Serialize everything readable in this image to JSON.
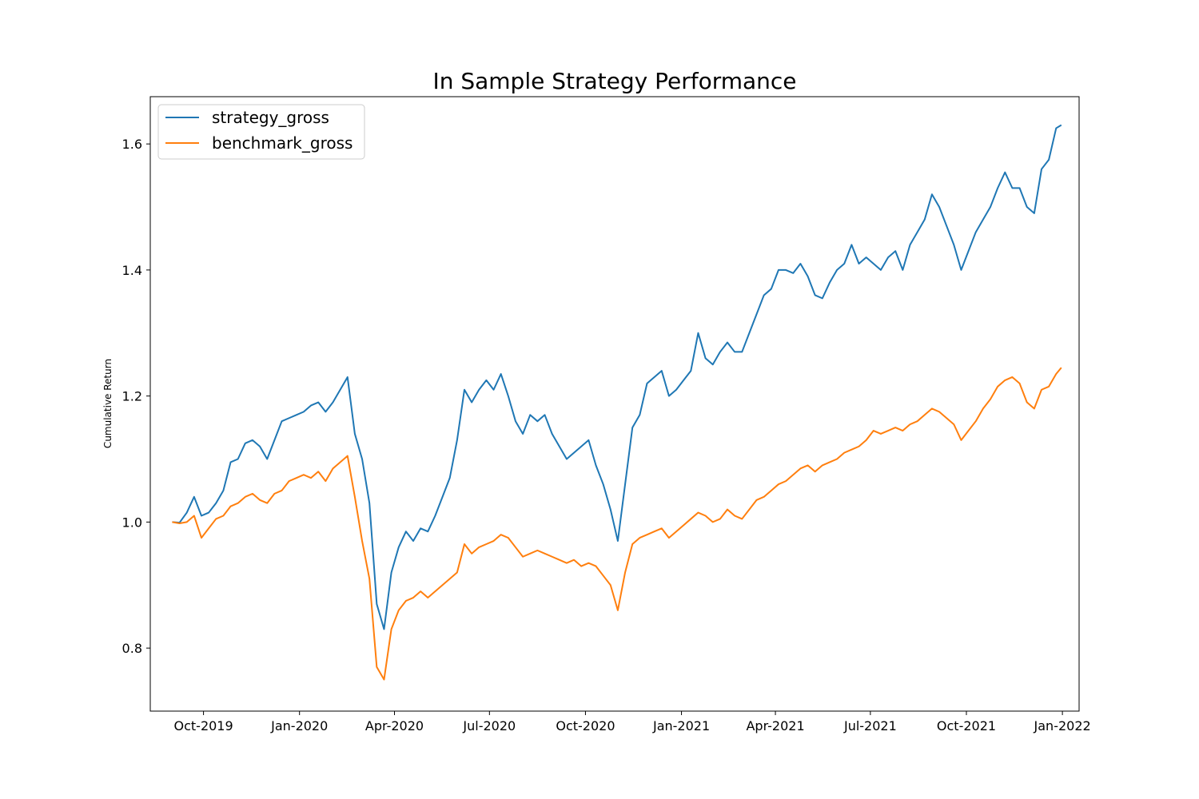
{
  "chart_data": {
    "type": "line",
    "title": "In Sample Strategy Performance",
    "xlabel": "",
    "ylabel": "Cumulative Return",
    "xlim": [
      "2019-08-11",
      "2022-01-17"
    ],
    "ylim": [
      0.7,
      1.675
    ],
    "x_ticks": [
      {
        "date": "2019-10-01",
        "label": "Oct-2019"
      },
      {
        "date": "2020-01-01",
        "label": "Jan-2020"
      },
      {
        "date": "2020-04-01",
        "label": "Apr-2020"
      },
      {
        "date": "2020-07-01",
        "label": "Jul-2020"
      },
      {
        "date": "2020-10-01",
        "label": "Oct-2020"
      },
      {
        "date": "2021-01-01",
        "label": "Jan-2021"
      },
      {
        "date": "2021-04-01",
        "label": "Apr-2021"
      },
      {
        "date": "2021-07-01",
        "label": "Jul-2021"
      },
      {
        "date": "2021-10-01",
        "label": "Oct-2021"
      },
      {
        "date": "2022-01-01",
        "label": "Jan-2022"
      }
    ],
    "y_ticks": [
      {
        "value": 0.8,
        "label": "0.8"
      },
      {
        "value": 1.0,
        "label": "1.0"
      },
      {
        "value": 1.2,
        "label": "1.2"
      },
      {
        "value": 1.4,
        "label": "1.4"
      },
      {
        "value": 1.6,
        "label": "1.6"
      }
    ],
    "grid": false,
    "legend_position": "top-left",
    "series": [
      {
        "name": "strategy_gross",
        "color": "#1f77b4",
        "points": [
          [
            "2019-09-01",
            1.0
          ],
          [
            "2019-09-08",
            0.999
          ],
          [
            "2019-09-15",
            1.015
          ],
          [
            "2019-09-22",
            1.04
          ],
          [
            "2019-09-29",
            1.01
          ],
          [
            "2019-10-06",
            1.015
          ],
          [
            "2019-10-13",
            1.03
          ],
          [
            "2019-10-20",
            1.05
          ],
          [
            "2019-10-27",
            1.095
          ],
          [
            "2019-11-03",
            1.1
          ],
          [
            "2019-11-10",
            1.125
          ],
          [
            "2019-11-17",
            1.13
          ],
          [
            "2019-11-24",
            1.12
          ],
          [
            "2019-12-01",
            1.1
          ],
          [
            "2019-12-08",
            1.13
          ],
          [
            "2019-12-15",
            1.16
          ],
          [
            "2019-12-22",
            1.165
          ],
          [
            "2019-12-29",
            1.17
          ],
          [
            "2020-01-05",
            1.175
          ],
          [
            "2020-01-12",
            1.185
          ],
          [
            "2020-01-19",
            1.19
          ],
          [
            "2020-01-26",
            1.175
          ],
          [
            "2020-02-02",
            1.19
          ],
          [
            "2020-02-09",
            1.21
          ],
          [
            "2020-02-16",
            1.23
          ],
          [
            "2020-02-23",
            1.14
          ],
          [
            "2020-03-01",
            1.1
          ],
          [
            "2020-03-08",
            1.03
          ],
          [
            "2020-03-15",
            0.87
          ],
          [
            "2020-03-22",
            0.83
          ],
          [
            "2020-03-29",
            0.92
          ],
          [
            "2020-04-05",
            0.96
          ],
          [
            "2020-04-12",
            0.985
          ],
          [
            "2020-04-19",
            0.97
          ],
          [
            "2020-04-26",
            0.99
          ],
          [
            "2020-05-03",
            0.985
          ],
          [
            "2020-05-10",
            1.01
          ],
          [
            "2020-05-17",
            1.04
          ],
          [
            "2020-05-24",
            1.07
          ],
          [
            "2020-05-31",
            1.13
          ],
          [
            "2020-06-07",
            1.21
          ],
          [
            "2020-06-14",
            1.19
          ],
          [
            "2020-06-21",
            1.21
          ],
          [
            "2020-06-28",
            1.225
          ],
          [
            "2020-07-05",
            1.21
          ],
          [
            "2020-07-12",
            1.235
          ],
          [
            "2020-07-19",
            1.2
          ],
          [
            "2020-07-26",
            1.16
          ],
          [
            "2020-08-02",
            1.14
          ],
          [
            "2020-08-09",
            1.17
          ],
          [
            "2020-08-16",
            1.16
          ],
          [
            "2020-08-23",
            1.17
          ],
          [
            "2020-08-30",
            1.14
          ],
          [
            "2020-09-06",
            1.12
          ],
          [
            "2020-09-13",
            1.1
          ],
          [
            "2020-09-20",
            1.11
          ],
          [
            "2020-09-27",
            1.12
          ],
          [
            "2020-10-04",
            1.13
          ],
          [
            "2020-10-11",
            1.09
          ],
          [
            "2020-10-18",
            1.06
          ],
          [
            "2020-10-25",
            1.02
          ],
          [
            "2020-11-01",
            0.97
          ],
          [
            "2020-11-08",
            1.06
          ],
          [
            "2020-11-15",
            1.15
          ],
          [
            "2020-11-22",
            1.17
          ],
          [
            "2020-11-29",
            1.22
          ],
          [
            "2020-12-06",
            1.23
          ],
          [
            "2020-12-13",
            1.24
          ],
          [
            "2020-12-20",
            1.2
          ],
          [
            "2020-12-27",
            1.21
          ],
          [
            "2021-01-03",
            1.225
          ],
          [
            "2021-01-10",
            1.24
          ],
          [
            "2021-01-17",
            1.3
          ],
          [
            "2021-01-24",
            1.26
          ],
          [
            "2021-01-31",
            1.25
          ],
          [
            "2021-02-07",
            1.27
          ],
          [
            "2021-02-14",
            1.285
          ],
          [
            "2021-02-21",
            1.27
          ],
          [
            "2021-02-28",
            1.27
          ],
          [
            "2021-03-07",
            1.3
          ],
          [
            "2021-03-14",
            1.33
          ],
          [
            "2021-03-21",
            1.36
          ],
          [
            "2021-03-28",
            1.37
          ],
          [
            "2021-04-04",
            1.4
          ],
          [
            "2021-04-11",
            1.4
          ],
          [
            "2021-04-18",
            1.395
          ],
          [
            "2021-04-25",
            1.41
          ],
          [
            "2021-05-02",
            1.39
          ],
          [
            "2021-05-09",
            1.36
          ],
          [
            "2021-05-16",
            1.355
          ],
          [
            "2021-05-23",
            1.38
          ],
          [
            "2021-05-30",
            1.4
          ],
          [
            "2021-06-06",
            1.41
          ],
          [
            "2021-06-13",
            1.44
          ],
          [
            "2021-06-20",
            1.41
          ],
          [
            "2021-06-27",
            1.42
          ],
          [
            "2021-07-04",
            1.41
          ],
          [
            "2021-07-11",
            1.4
          ],
          [
            "2021-07-18",
            1.42
          ],
          [
            "2021-07-25",
            1.43
          ],
          [
            "2021-08-01",
            1.4
          ],
          [
            "2021-08-08",
            1.44
          ],
          [
            "2021-08-15",
            1.46
          ],
          [
            "2021-08-22",
            1.48
          ],
          [
            "2021-08-29",
            1.52
          ],
          [
            "2021-09-05",
            1.5
          ],
          [
            "2021-09-12",
            1.47
          ],
          [
            "2021-09-19",
            1.44
          ],
          [
            "2021-09-26",
            1.4
          ],
          [
            "2021-10-03",
            1.43
          ],
          [
            "2021-10-10",
            1.46
          ],
          [
            "2021-10-17",
            1.48
          ],
          [
            "2021-10-24",
            1.5
          ],
          [
            "2021-10-31",
            1.53
          ],
          [
            "2021-11-07",
            1.555
          ],
          [
            "2021-11-14",
            1.53
          ],
          [
            "2021-11-21",
            1.53
          ],
          [
            "2021-11-28",
            1.5
          ],
          [
            "2021-12-05",
            1.49
          ],
          [
            "2021-12-12",
            1.56
          ],
          [
            "2021-12-19",
            1.575
          ],
          [
            "2021-12-26",
            1.625
          ],
          [
            "2021-12-31",
            1.63
          ]
        ]
      },
      {
        "name": "benchmark_gross",
        "color": "#ff7f0e",
        "points": [
          [
            "2019-09-01",
            1.0
          ],
          [
            "2019-09-08",
            0.998
          ],
          [
            "2019-09-15",
            1.0
          ],
          [
            "2019-09-22",
            1.01
          ],
          [
            "2019-09-29",
            0.975
          ],
          [
            "2019-10-06",
            0.99
          ],
          [
            "2019-10-13",
            1.005
          ],
          [
            "2019-10-20",
            1.01
          ],
          [
            "2019-10-27",
            1.025
          ],
          [
            "2019-11-03",
            1.03
          ],
          [
            "2019-11-10",
            1.04
          ],
          [
            "2019-11-17",
            1.045
          ],
          [
            "2019-11-24",
            1.035
          ],
          [
            "2019-12-01",
            1.03
          ],
          [
            "2019-12-08",
            1.045
          ],
          [
            "2019-12-15",
            1.05
          ],
          [
            "2019-12-22",
            1.065
          ],
          [
            "2019-12-29",
            1.07
          ],
          [
            "2020-01-05",
            1.075
          ],
          [
            "2020-01-12",
            1.07
          ],
          [
            "2020-01-19",
            1.08
          ],
          [
            "2020-01-26",
            1.065
          ],
          [
            "2020-02-02",
            1.085
          ],
          [
            "2020-02-09",
            1.095
          ],
          [
            "2020-02-16",
            1.105
          ],
          [
            "2020-02-23",
            1.04
          ],
          [
            "2020-03-01",
            0.97
          ],
          [
            "2020-03-08",
            0.91
          ],
          [
            "2020-03-15",
            0.77
          ],
          [
            "2020-03-22",
            0.75
          ],
          [
            "2020-03-29",
            0.83
          ],
          [
            "2020-04-05",
            0.86
          ],
          [
            "2020-04-12",
            0.875
          ],
          [
            "2020-04-19",
            0.88
          ],
          [
            "2020-04-26",
            0.89
          ],
          [
            "2020-05-03",
            0.88
          ],
          [
            "2020-05-10",
            0.89
          ],
          [
            "2020-05-17",
            0.9
          ],
          [
            "2020-05-24",
            0.91
          ],
          [
            "2020-05-31",
            0.92
          ],
          [
            "2020-06-07",
            0.965
          ],
          [
            "2020-06-14",
            0.95
          ],
          [
            "2020-06-21",
            0.96
          ],
          [
            "2020-06-28",
            0.965
          ],
          [
            "2020-07-05",
            0.97
          ],
          [
            "2020-07-12",
            0.98
          ],
          [
            "2020-07-19",
            0.975
          ],
          [
            "2020-07-26",
            0.96
          ],
          [
            "2020-08-02",
            0.945
          ],
          [
            "2020-08-09",
            0.95
          ],
          [
            "2020-08-16",
            0.955
          ],
          [
            "2020-08-23",
            0.95
          ],
          [
            "2020-08-30",
            0.945
          ],
          [
            "2020-09-06",
            0.94
          ],
          [
            "2020-09-13",
            0.935
          ],
          [
            "2020-09-20",
            0.94
          ],
          [
            "2020-09-27",
            0.93
          ],
          [
            "2020-10-04",
            0.935
          ],
          [
            "2020-10-11",
            0.93
          ],
          [
            "2020-10-18",
            0.915
          ],
          [
            "2020-10-25",
            0.9
          ],
          [
            "2020-11-01",
            0.86
          ],
          [
            "2020-11-08",
            0.92
          ],
          [
            "2020-11-15",
            0.965
          ],
          [
            "2020-11-22",
            0.975
          ],
          [
            "2020-11-29",
            0.98
          ],
          [
            "2020-12-06",
            0.985
          ],
          [
            "2020-12-13",
            0.99
          ],
          [
            "2020-12-20",
            0.975
          ],
          [
            "2020-12-27",
            0.985
          ],
          [
            "2021-01-03",
            0.995
          ],
          [
            "2021-01-10",
            1.005
          ],
          [
            "2021-01-17",
            1.015
          ],
          [
            "2021-01-24",
            1.01
          ],
          [
            "2021-01-31",
            1.0
          ],
          [
            "2021-02-07",
            1.005
          ],
          [
            "2021-02-14",
            1.02
          ],
          [
            "2021-02-21",
            1.01
          ],
          [
            "2021-02-28",
            1.005
          ],
          [
            "2021-03-07",
            1.02
          ],
          [
            "2021-03-14",
            1.035
          ],
          [
            "2021-03-21",
            1.04
          ],
          [
            "2021-03-28",
            1.05
          ],
          [
            "2021-04-04",
            1.06
          ],
          [
            "2021-04-11",
            1.065
          ],
          [
            "2021-04-18",
            1.075
          ],
          [
            "2021-04-25",
            1.085
          ],
          [
            "2021-05-02",
            1.09
          ],
          [
            "2021-05-09",
            1.08
          ],
          [
            "2021-05-16",
            1.09
          ],
          [
            "2021-05-23",
            1.095
          ],
          [
            "2021-05-30",
            1.1
          ],
          [
            "2021-06-06",
            1.11
          ],
          [
            "2021-06-13",
            1.115
          ],
          [
            "2021-06-20",
            1.12
          ],
          [
            "2021-06-27",
            1.13
          ],
          [
            "2021-07-04",
            1.145
          ],
          [
            "2021-07-11",
            1.14
          ],
          [
            "2021-07-18",
            1.145
          ],
          [
            "2021-07-25",
            1.15
          ],
          [
            "2021-08-01",
            1.145
          ],
          [
            "2021-08-08",
            1.155
          ],
          [
            "2021-08-15",
            1.16
          ],
          [
            "2021-08-22",
            1.17
          ],
          [
            "2021-08-29",
            1.18
          ],
          [
            "2021-09-05",
            1.175
          ],
          [
            "2021-09-12",
            1.165
          ],
          [
            "2021-09-19",
            1.155
          ],
          [
            "2021-09-26",
            1.13
          ],
          [
            "2021-10-03",
            1.145
          ],
          [
            "2021-10-10",
            1.16
          ],
          [
            "2021-10-17",
            1.18
          ],
          [
            "2021-10-24",
            1.195
          ],
          [
            "2021-10-31",
            1.215
          ],
          [
            "2021-11-07",
            1.225
          ],
          [
            "2021-11-14",
            1.23
          ],
          [
            "2021-11-21",
            1.22
          ],
          [
            "2021-11-28",
            1.19
          ],
          [
            "2021-12-05",
            1.18
          ],
          [
            "2021-12-12",
            1.21
          ],
          [
            "2021-12-19",
            1.215
          ],
          [
            "2021-12-26",
            1.235
          ],
          [
            "2021-12-31",
            1.245
          ]
        ]
      }
    ]
  }
}
